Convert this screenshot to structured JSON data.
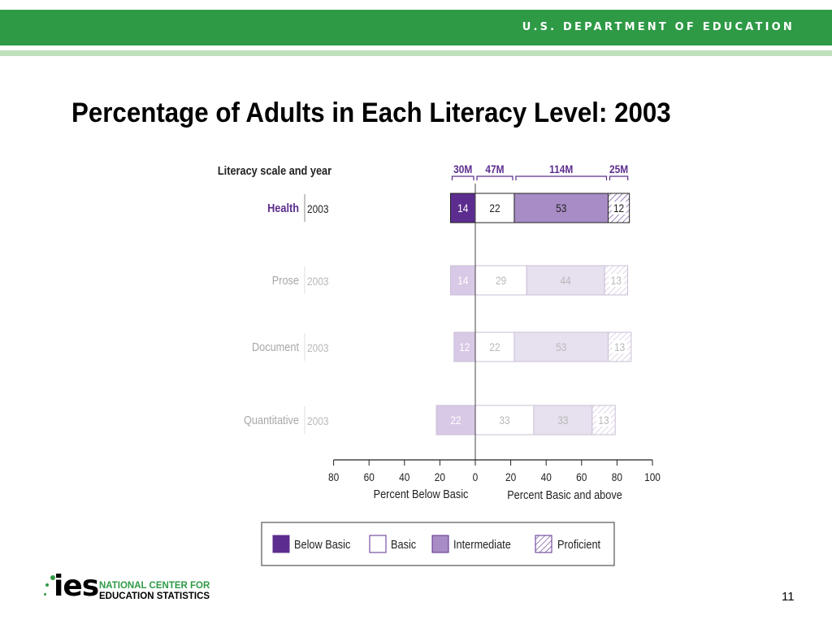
{
  "header": {
    "org_name": "U.S. DEPARTMENT OF EDUCATION",
    "colors": {
      "banner": "#2e9a46",
      "stripe": "#bfe0bc"
    }
  },
  "slide": {
    "title": "Percentage of Adults in Each Literacy Level: 2003",
    "page_number": "11"
  },
  "footer": {
    "logo_mark": "ies",
    "logo_line1": "NATIONAL CENTER FOR",
    "logo_line2": "EDUCATION STATISTICS"
  },
  "chart_data": {
    "type": "bar",
    "stacked": true,
    "orientation": "horizontal",
    "diverging": true,
    "row_header": "Literacy scale and year",
    "categories": [
      "Health",
      "Prose",
      "Document",
      "Quantitative"
    ],
    "years": [
      "2003",
      "2003",
      "2003",
      "2003"
    ],
    "highlighted_category": "Health",
    "series": [
      {
        "name": "Below Basic",
        "values": [
          14,
          14,
          12,
          22
        ],
        "side": "left",
        "fill": "#5c2d8e",
        "faded_fill": "#d8c9e6"
      },
      {
        "name": "Basic",
        "values": [
          22,
          29,
          22,
          33
        ],
        "side": "right",
        "fill": "#ffffff",
        "faded_fill": "#ffffff"
      },
      {
        "name": "Intermediate",
        "values": [
          53,
          44,
          53,
          33
        ],
        "side": "right",
        "fill": "#a88cc6",
        "faded_fill": "#e7e0ef"
      },
      {
        "name": "Proficient",
        "values": [
          12,
          13,
          13,
          13
        ],
        "side": "right",
        "fill": "hatch",
        "faded_fill": "hatch"
      }
    ],
    "population_labels": [
      "30M",
      "47M",
      "114M",
      "25M"
    ],
    "xaxis": {
      "range": [
        -80,
        100
      ],
      "ticks": [
        -80,
        -60,
        -40,
        -20,
        0,
        20,
        40,
        60,
        80,
        100
      ],
      "tick_labels": [
        "80",
        "60",
        "40",
        "20",
        "0",
        "20",
        "40",
        "60",
        "80",
        "100"
      ],
      "left_label": "Percent Below Basic",
      "right_label": "Percent Basic and above"
    },
    "legend_position": "bottom"
  }
}
